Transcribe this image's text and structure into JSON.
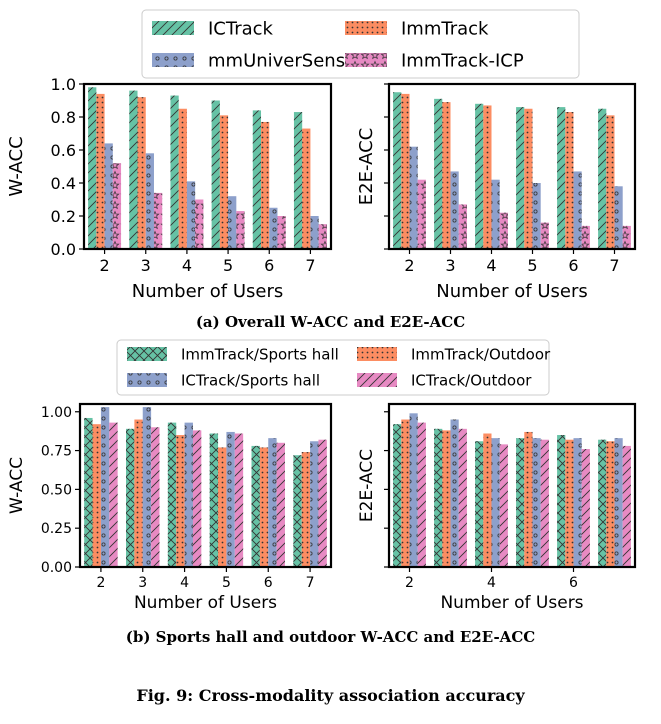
{
  "figure_caption": "Fig. 9: Cross-modality association accuracy",
  "subcaptions": {
    "a": "(a) Overall W-ACC and E2E-ACC",
    "b": "(b) Sports hall and outdoor W-ACC and E2E-ACC"
  },
  "colors": {
    "green": "#66c2a5",
    "orange": "#fc8d62",
    "blue": "#8da0cb",
    "pink": "#e78ac3"
  },
  "chart_data": [
    {
      "type": "bar",
      "panel": "a-left",
      "title": "",
      "xlabel": "Number of Users",
      "ylabel": "W-ACC",
      "categories": [
        "2",
        "3",
        "4",
        "5",
        "6",
        "7"
      ],
      "ylim": [
        0,
        1.0
      ],
      "yticks": [
        "0.0",
        "0.2",
        "0.4",
        "0.6",
        "0.8",
        "1.0"
      ],
      "show_yticklabels": true,
      "legend_position": "top-center",
      "series": [
        {
          "name": "ICTrack",
          "color": "#66c2a5",
          "hatch": "slash",
          "values": [
            0.98,
            0.96,
            0.93,
            0.9,
            0.84,
            0.83
          ]
        },
        {
          "name": "ImmTrack",
          "color": "#fc8d62",
          "hatch": "dots",
          "values": [
            0.94,
            0.92,
            0.85,
            0.81,
            0.77,
            0.73
          ]
        },
        {
          "name": "mmUniverSense",
          "color": "#8da0cb",
          "hatch": "circles",
          "values": [
            0.64,
            0.58,
            0.41,
            0.32,
            0.25,
            0.2
          ]
        },
        {
          "name": "ImmTrack-ICP",
          "color": "#e78ac3",
          "hatch": "stars",
          "values": [
            0.52,
            0.34,
            0.3,
            0.23,
            0.2,
            0.15
          ]
        }
      ]
    },
    {
      "type": "bar",
      "panel": "a-right",
      "title": "",
      "xlabel": "Number of Users",
      "ylabel": "E2E-ACC",
      "categories": [
        "2",
        "3",
        "4",
        "5",
        "6",
        "7"
      ],
      "ylim": [
        0,
        1.0
      ],
      "yticks": [
        "0.0",
        "0.2",
        "0.4",
        "0.6",
        "0.8",
        "1.0"
      ],
      "show_yticklabels": false,
      "series": [
        {
          "name": "ICTrack",
          "color": "#66c2a5",
          "hatch": "slash",
          "values": [
            0.95,
            0.91,
            0.88,
            0.86,
            0.86,
            0.85
          ]
        },
        {
          "name": "ImmTrack",
          "color": "#fc8d62",
          "hatch": "dots",
          "values": [
            0.94,
            0.89,
            0.87,
            0.85,
            0.83,
            0.81
          ]
        },
        {
          "name": "mmUniverSense",
          "color": "#8da0cb",
          "hatch": "circles",
          "values": [
            0.62,
            0.47,
            0.42,
            0.4,
            0.47,
            0.38
          ]
        },
        {
          "name": "ImmTrack-ICP",
          "color": "#e78ac3",
          "hatch": "stars",
          "values": [
            0.42,
            0.27,
            0.22,
            0.16,
            0.14,
            0.14
          ]
        }
      ]
    },
    {
      "type": "bar",
      "panel": "b-left",
      "title": "",
      "xlabel": "Number of Users",
      "ylabel": "W-ACC",
      "categories": [
        "2",
        "3",
        "4",
        "5",
        "6",
        "7"
      ],
      "ylim": [
        0,
        1.05
      ],
      "yticks": [
        "0.00",
        "0.25",
        "0.50",
        "0.75",
        "1.00"
      ],
      "show_yticklabels": true,
      "legend_position": "top-center",
      "series": [
        {
          "name": "ImmTrack/Sports hall",
          "color": "#66c2a5",
          "hatch": "cross",
          "values": [
            0.96,
            0.89,
            0.93,
            0.86,
            0.78,
            0.72
          ]
        },
        {
          "name": "ImmTrack/Outdoor",
          "color": "#fc8d62",
          "hatch": "dots",
          "values": [
            0.92,
            0.95,
            0.85,
            0.77,
            0.77,
            0.74
          ]
        },
        {
          "name": "ICTrack/Sports hall",
          "color": "#8da0cb",
          "hatch": "circles",
          "values": [
            1.03,
            1.03,
            0.93,
            0.87,
            0.83,
            0.81
          ]
        },
        {
          "name": "ICTrack/Outdoor",
          "color": "#e78ac3",
          "hatch": "slash",
          "values": [
            0.93,
            0.9,
            0.88,
            0.86,
            0.8,
            0.82
          ]
        }
      ]
    },
    {
      "type": "bar",
      "panel": "b-right",
      "title": "",
      "xlabel": "Number of Users",
      "ylabel": "E2E-ACC",
      "categories": [
        "2",
        "3",
        "4",
        "5",
        "6",
        "7"
      ],
      "xticks_shown": [
        "2",
        "4",
        "6"
      ],
      "ylim": [
        0,
        1.05
      ],
      "yticks": [
        "0.00",
        "0.25",
        "0.50",
        "0.75",
        "1.00"
      ],
      "show_yticklabels": false,
      "series": [
        {
          "name": "ImmTrack/Sports hall",
          "color": "#66c2a5",
          "hatch": "cross",
          "values": [
            0.92,
            0.89,
            0.81,
            0.83,
            0.85,
            0.82
          ]
        },
        {
          "name": "ImmTrack/Outdoor",
          "color": "#fc8d62",
          "hatch": "dots",
          "values": [
            0.95,
            0.88,
            0.86,
            0.87,
            0.82,
            0.81
          ]
        },
        {
          "name": "ICTrack/Sports hall",
          "color": "#8da0cb",
          "hatch": "circles",
          "values": [
            0.99,
            0.95,
            0.83,
            0.83,
            0.83,
            0.83
          ]
        },
        {
          "name": "ICTrack/Outdoor",
          "color": "#e78ac3",
          "hatch": "slash",
          "values": [
            0.93,
            0.89,
            0.79,
            0.82,
            0.76,
            0.78
          ]
        }
      ]
    }
  ]
}
